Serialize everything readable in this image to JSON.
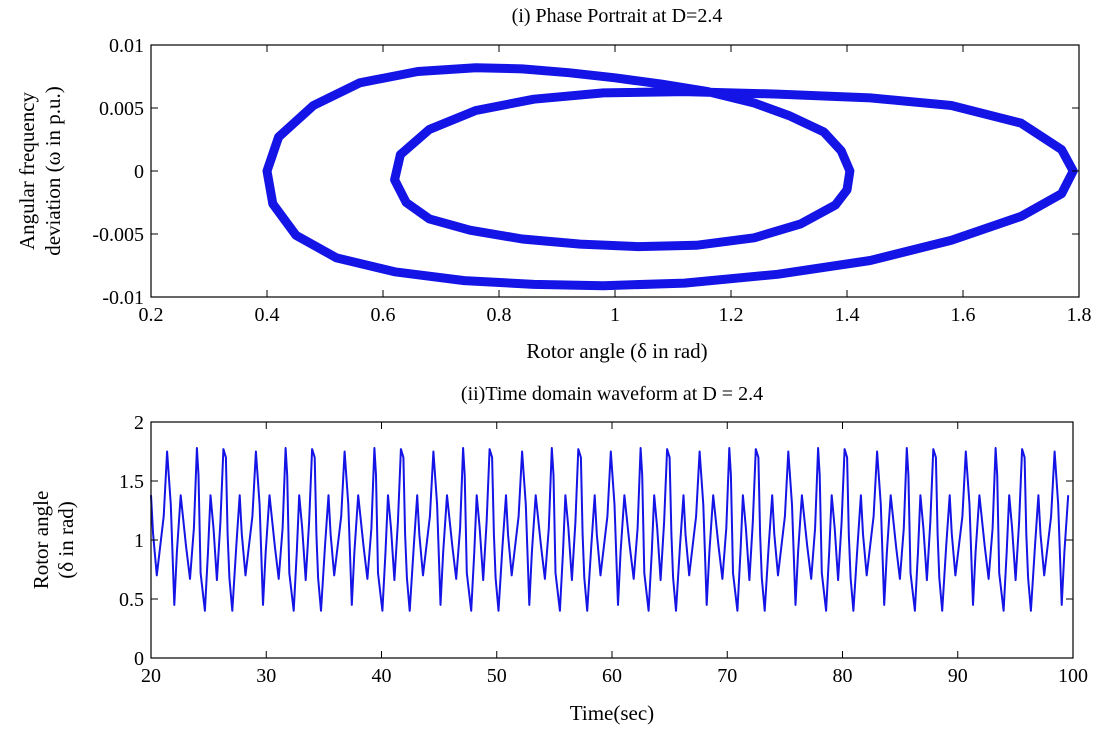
{
  "colors": {
    "series": "#1414e6",
    "axes": "#000000",
    "background": "#ffffff"
  },
  "chart_data": [
    {
      "type": "line",
      "title": "(i) Phase Portrait at D=2.4",
      "xlabel": "Rotor angle (δ in rad)",
      "ylabel_lines": [
        "Angular frequency",
        "deviation (ω in p.u.)"
      ],
      "xlim": [
        0.2,
        1.8
      ],
      "ylim": [
        -0.01,
        0.01
      ],
      "xticks": [
        0.2,
        0.4,
        0.6,
        0.8,
        1,
        1.2,
        1.4,
        1.6,
        1.8
      ],
      "yticks": [
        -0.01,
        -0.005,
        0,
        0.005,
        0.01
      ],
      "xtick_labels": [
        "0.2",
        "0.4",
        "0.6",
        "0.8",
        "1",
        "1.2",
        "1.4",
        "1.6",
        "1.8"
      ],
      "ytick_labels": [
        "-0.01",
        "-0.005",
        "0",
        "0.005",
        "0.01"
      ],
      "grid": false,
      "legend": "none",
      "series": [
        {
          "x": [
            0.4,
            0.42,
            0.48,
            0.56,
            0.66,
            0.76,
            0.84,
            0.92,
            1.0,
            1.08,
            1.16,
            1.24,
            1.3,
            1.36,
            1.39,
            1.405,
            1.4,
            1.38,
            1.32,
            1.24,
            1.14,
            1.04,
            0.94,
            0.84,
            0.75,
            0.68,
            0.64,
            0.62,
            0.63,
            0.68,
            0.76,
            0.86,
            0.98,
            1.12,
            1.28,
            1.44,
            1.58,
            1.7,
            1.77,
            1.79,
            1.77,
            1.7,
            1.58,
            1.44,
            1.28,
            1.12,
            0.98,
            0.86,
            0.74,
            0.62,
            0.52,
            0.45,
            0.41,
            0.4
          ],
          "y": [
            0,
            0.0027,
            0.0052,
            0.007,
            0.0079,
            0.0082,
            0.0081,
            0.0078,
            0.0074,
            0.0069,
            0.0063,
            0.0054,
            0.0044,
            0.0031,
            0.0016,
            0,
            -0.0015,
            -0.0027,
            -0.0042,
            -0.0053,
            -0.0059,
            -0.006,
            -0.0058,
            -0.0054,
            -0.0047,
            -0.0038,
            -0.0025,
            -0.0007,
            0.0013,
            0.0033,
            0.0048,
            0.0057,
            0.0062,
            0.0063,
            0.0061,
            0.0058,
            0.0052,
            0.0038,
            0.0017,
            0,
            -0.0018,
            -0.0036,
            -0.0055,
            -0.0071,
            -0.0082,
            -0.0089,
            -0.0091,
            -0.009,
            -0.0087,
            -0.008,
            -0.0069,
            -0.0051,
            -0.0026,
            0
          ]
        }
      ]
    },
    {
      "type": "line",
      "title": "(ii)Time domain waveform at D = 2.4",
      "xlabel": "Time(sec)",
      "ylabel_lines": [
        "Rotor angle",
        "(δ in rad)"
      ],
      "xlim": [
        20,
        100
      ],
      "ylim": [
        0,
        2
      ],
      "xticks": [
        20,
        30,
        40,
        50,
        60,
        70,
        80,
        90,
        100
      ],
      "yticks": [
        0,
        0.5,
        1,
        1.5,
        2
      ],
      "xtick_labels": [
        "20",
        "30",
        "40",
        "50",
        "60",
        "70",
        "80",
        "90",
        "100"
      ],
      "ytick_labels": [
        "0",
        "0.5",
        "1",
        "1.5",
        "2"
      ],
      "grid": false,
      "legend": "none",
      "series": [
        {
          "x": [
            20.0,
            20.18,
            20.5,
            21.1,
            21.4,
            21.72,
            22.02,
            22.25,
            22.58,
            23.04,
            23.38,
            23.72,
            23.98,
            24.12,
            24.3,
            24.68,
            24.95,
            25.16,
            25.42,
            25.72,
            26.02,
            26.28,
            26.5,
            26.65,
            26.8,
            27.05,
            27.4,
            27.7
          ],
          "y": [
            1.38,
            1.05,
            0.7,
            1.2,
            1.75,
            1.3,
            0.45,
            0.9,
            1.38,
            0.95,
            0.67,
            1.1,
            1.78,
            1.55,
            0.72,
            0.4,
            0.9,
            1.38,
            1.1,
            0.66,
            1.15,
            1.77,
            1.7,
            1.05,
            0.68,
            0.4,
            0.95,
            1.38
          ]
        }
      ]
    }
  ]
}
